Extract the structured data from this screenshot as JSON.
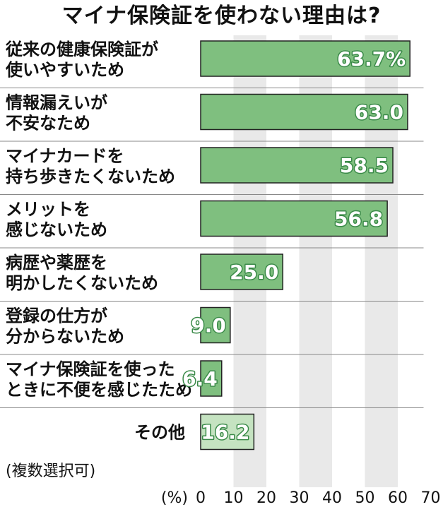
{
  "chart_data": {
    "type": "bar",
    "orientation": "horizontal",
    "title": "マイナ保険証を使わない理由は?",
    "categories": [
      [
        "従来の健康保険証が",
        "使いやすいため"
      ],
      [
        "情報漏えいが",
        "不安なため"
      ],
      [
        "マイナカードを",
        "持ち歩きたくないため"
      ],
      [
        "メリットを",
        "感じないため"
      ],
      [
        "病歴や薬歴を",
        "明かしたくないため"
      ],
      [
        "登録の仕方が",
        "分からないため"
      ],
      [
        "マイナ保険証を使った",
        "ときに不便を感じたため"
      ],
      [
        "その他"
      ]
    ],
    "values": [
      63.7,
      63.0,
      58.5,
      56.8,
      25.0,
      9.0,
      6.4,
      16.2
    ],
    "value_labels": [
      "63.7%",
      "63.0",
      "58.5",
      "56.8",
      "25.0",
      "9.0",
      "6.4",
      "16.2"
    ],
    "xlim": [
      0,
      70
    ],
    "xticks": [
      "0",
      "10",
      "20",
      "30",
      "40",
      "50",
      "60",
      "70"
    ],
    "unit_label": "(%)",
    "note": "(複数選択可)",
    "colors": {
      "bar": "#7fbf7f",
      "bar_other": "#c5e3c1",
      "bar_border": "#222222",
      "value_text": "#ffffff",
      "value_outline": "#3a8a48",
      "band": "#e9e9e9",
      "row_line": "#888888"
    }
  }
}
